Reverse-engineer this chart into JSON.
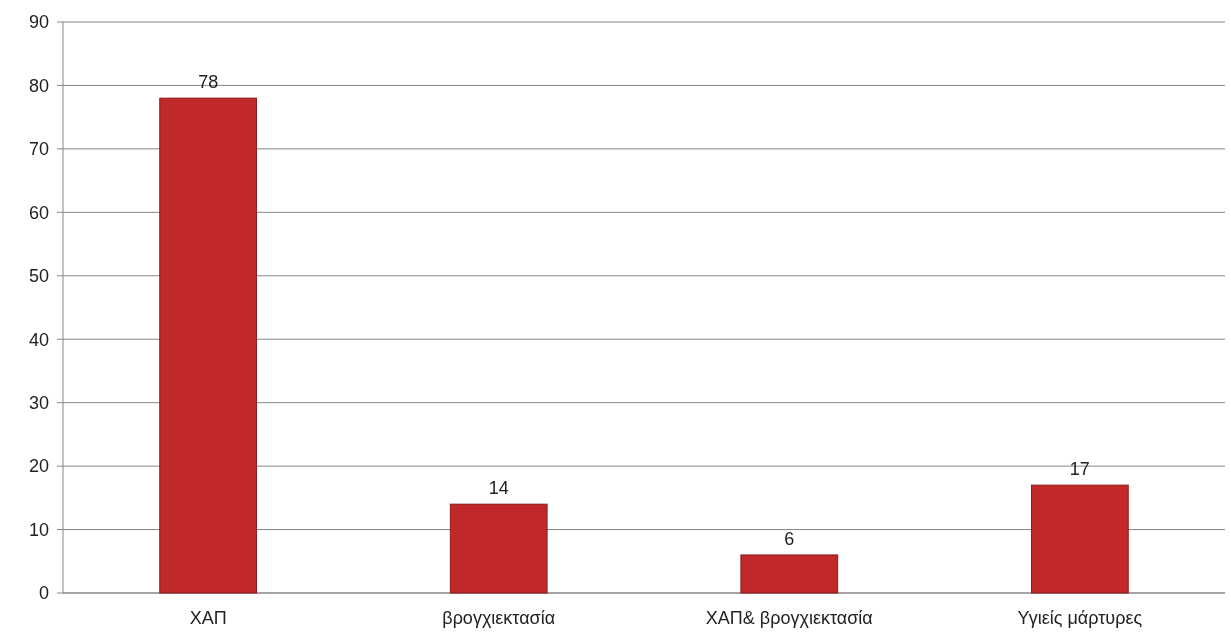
{
  "chart_data": {
    "type": "bar",
    "categories": [
      "ΧΑΠ",
      "βρογχιεκτασία",
      "ΧΑΠ& βρογχιεκτασία",
      "Υγιείς μάρτυρες"
    ],
    "values": [
      78,
      14,
      6,
      17
    ],
    "color": "#c0282a",
    "ylim": [
      0,
      90
    ],
    "yticks": [
      0,
      10,
      20,
      30,
      40,
      50,
      60,
      70,
      80,
      90
    ],
    "grid": "y",
    "data_labels": true
  }
}
